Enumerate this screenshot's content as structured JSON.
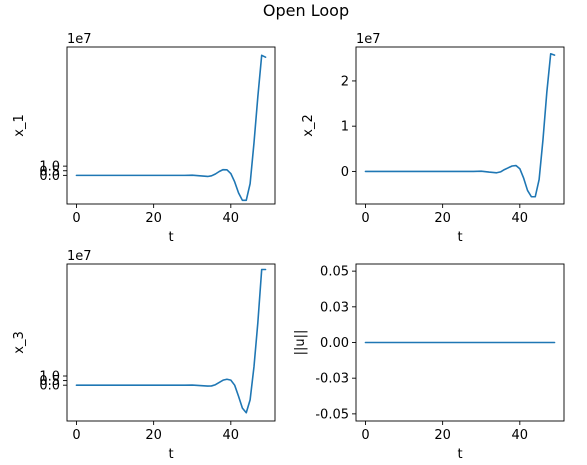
{
  "figure": {
    "title": "Open Loop"
  },
  "style": {
    "line_color": "#1f77b4",
    "axis_color": "#000000",
    "background": "#ffffff"
  },
  "chart_data": [
    {
      "type": "line",
      "id": "x1",
      "xlabel": "t",
      "ylabel": "x_1",
      "offset_text": "1e7",
      "xlim": [
        -2.45,
        51.45
      ],
      "ylim": [
        -3.1,
        13.9
      ],
      "xticks": [
        0,
        20,
        40
      ],
      "xtick_labels": [
        "0",
        "20",
        "40"
      ],
      "yticks": [
        0,
        0.5,
        1.0
      ],
      "ytick_labels": [
        "0.0",
        "0.5",
        "1.0"
      ],
      "series": [
        {
          "x": [
            0,
            5,
            10,
            15,
            20,
            25,
            28,
            30,
            32,
            34,
            35,
            36,
            37,
            38,
            39,
            40,
            41,
            42,
            43,
            44,
            45,
            46,
            47,
            48,
            49
          ],
          "y": [
            0,
            0,
            0,
            0,
            0,
            0,
            0,
            0.02,
            -0.05,
            -0.12,
            -0.05,
            0.15,
            0.42,
            0.62,
            0.6,
            0.2,
            -0.7,
            -1.9,
            -2.7,
            -2.7,
            -0.9,
            3.5,
            8.5,
            13.0,
            12.8
          ]
        }
      ]
    },
    {
      "type": "line",
      "id": "x2",
      "xlabel": "t",
      "ylabel": "x_2",
      "offset_text": "1e7",
      "xlim": [
        -2.45,
        51.45
      ],
      "ylim": [
        -0.72,
        2.75
      ],
      "xticks": [
        0,
        20,
        40
      ],
      "xtick_labels": [
        "0",
        "20",
        "40"
      ],
      "yticks": [
        0,
        1,
        2
      ],
      "ytick_labels": [
        "0",
        "1",
        "2"
      ],
      "series": [
        {
          "x": [
            0,
            5,
            10,
            15,
            20,
            25,
            28,
            30,
            32,
            34,
            35,
            36,
            37,
            38,
            39,
            40,
            41,
            42,
            43,
            44,
            45,
            46,
            47,
            48,
            49
          ],
          "y": [
            0,
            0,
            0,
            0,
            0,
            0,
            0,
            0.005,
            -0.015,
            -0.03,
            -0.01,
            0.04,
            0.08,
            0.12,
            0.13,
            0.06,
            -0.15,
            -0.42,
            -0.56,
            -0.56,
            -0.18,
            0.7,
            1.75,
            2.6,
            2.57
          ]
        }
      ]
    },
    {
      "type": "line",
      "id": "x3",
      "xlabel": "t",
      "ylabel": "x_3",
      "offset_text": "1e7",
      "xlim": [
        -2.45,
        51.45
      ],
      "ylim": [
        -3.9,
        13.2
      ],
      "xticks": [
        0,
        20,
        40
      ],
      "xtick_labels": [
        "0",
        "20",
        "40"
      ],
      "yticks": [
        0,
        0.5,
        1.0
      ],
      "ytick_labels": [
        "0.0",
        "0.5",
        "1.0"
      ],
      "series": [
        {
          "x": [
            0,
            5,
            10,
            15,
            20,
            25,
            28,
            30,
            32,
            34,
            35,
            36,
            37,
            38,
            39,
            40,
            41,
            42,
            43,
            44,
            45,
            46,
            47,
            48,
            49
          ],
          "y": [
            0,
            0,
            0,
            0,
            0,
            0,
            0,
            0.01,
            -0.04,
            -0.1,
            -0.08,
            0.05,
            0.3,
            0.55,
            0.65,
            0.55,
            0.0,
            -1.2,
            -2.5,
            -3.0,
            -1.6,
            2.0,
            6.8,
            12.6,
            12.6
          ]
        }
      ]
    },
    {
      "type": "line",
      "id": "u",
      "xlabel": "t",
      "ylabel": "||u||",
      "offset_text": "",
      "xlim": [
        -2.45,
        51.45
      ],
      "ylim": [
        -0.055,
        0.055
      ],
      "xticks": [
        0,
        20,
        40
      ],
      "xtick_labels": [
        "0",
        "20",
        "40"
      ],
      "yticks": [
        -0.05,
        -0.025,
        0,
        0.025,
        0.05
      ],
      "ytick_labels": [
        "-0.05",
        "-0.03",
        "0.00",
        "0.03",
        "0.05"
      ],
      "series": [
        {
          "x": [
            0,
            49
          ],
          "y": [
            0,
            0
          ]
        }
      ]
    }
  ]
}
